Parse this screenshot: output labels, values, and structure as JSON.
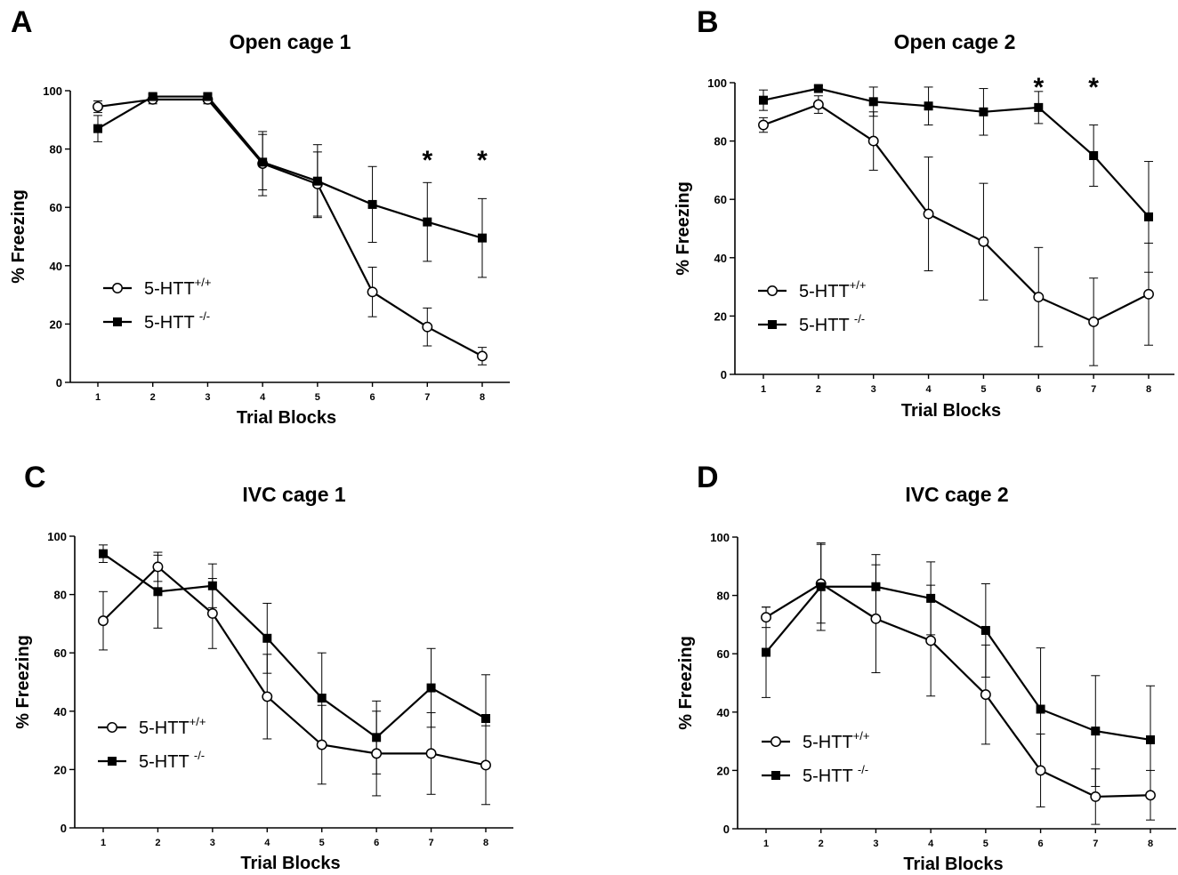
{
  "chart_data": [
    {
      "type": "line",
      "panel_label": "A",
      "title": "Open cage 1",
      "xlabel": "Trial Blocks",
      "ylabel": "% Freezing",
      "ylim": [
        0,
        100
      ],
      "yticks": [
        0,
        20,
        40,
        60,
        80,
        100
      ],
      "x": [
        1,
        2,
        3,
        4,
        5,
        6,
        7,
        8
      ],
      "series": [
        {
          "name": "5-HTT",
          "sup": "+/+",
          "marker": "open-circle",
          "values": [
            94.5,
            97,
            97,
            75,
            68,
            31,
            19,
            9
          ],
          "errors": [
            2,
            1.5,
            1.5,
            11,
            11,
            8.5,
            6.5,
            3
          ]
        },
        {
          "name": "5-HTT",
          "sup": "-/-",
          "marker": "filled-square",
          "values": [
            87,
            98,
            98,
            75.5,
            69,
            61,
            55,
            49.5
          ],
          "errors": [
            4.5,
            1,
            1,
            9.5,
            12.5,
            13,
            13.5,
            13.5
          ]
        }
      ],
      "annotations": [
        {
          "x": 7,
          "text": "*"
        },
        {
          "x": 8,
          "text": "*"
        }
      ],
      "legend_position": "bottom-left"
    },
    {
      "type": "line",
      "panel_label": "B",
      "title": "Open cage 2",
      "xlabel": "Trial Blocks",
      "ylabel": "% Freezing",
      "ylim": [
        0,
        100
      ],
      "yticks": [
        0,
        20,
        40,
        60,
        80,
        100
      ],
      "x": [
        1,
        2,
        3,
        4,
        5,
        6,
        7,
        8
      ],
      "series": [
        {
          "name": "5-HTT",
          "sup": "+/+",
          "marker": "open-circle",
          "values": [
            85.5,
            92.5,
            80,
            55,
            45.5,
            26.5,
            18,
            27.5
          ],
          "errors": [
            2.5,
            3,
            10,
            19.5,
            20,
            17,
            15,
            17.5
          ]
        },
        {
          "name": "5-HTT",
          "sup": "-/-",
          "marker": "filled-square",
          "values": [
            94,
            98,
            93.5,
            92,
            90,
            91.5,
            75,
            54
          ],
          "errors": [
            3.5,
            1,
            5,
            6.5,
            8,
            5.5,
            10.5,
            19
          ]
        }
      ],
      "annotations": [
        {
          "x": 6,
          "text": "*"
        },
        {
          "x": 7,
          "text": "*"
        }
      ],
      "legend_position": "bottom-left"
    },
    {
      "type": "line",
      "panel_label": "C",
      "title": "IVC cage 1",
      "xlabel": "Trial Blocks",
      "ylabel": "% Freezing",
      "ylim": [
        0,
        100
      ],
      "yticks": [
        0,
        20,
        40,
        60,
        80,
        100
      ],
      "x": [
        1,
        2,
        3,
        4,
        5,
        6,
        7,
        8
      ],
      "series": [
        {
          "name": "5-HTT",
          "sup": "+/+",
          "marker": "open-circle",
          "values": [
            71,
            89.5,
            73.5,
            45,
            28.5,
            25.5,
            25.5,
            21.5
          ],
          "errors": [
            10,
            5,
            12,
            14.5,
            13.5,
            14.5,
            14,
            13.5
          ]
        },
        {
          "name": "5-HTT",
          "sup": "-/-",
          "marker": "filled-square",
          "values": [
            94,
            81,
            83,
            65,
            44.5,
            31,
            48,
            37.5
          ],
          "errors": [
            3,
            12.5,
            7.5,
            12,
            15.5,
            12.5,
            13.5,
            15
          ]
        }
      ],
      "annotations": [],
      "legend_position": "bottom-left"
    },
    {
      "type": "line",
      "panel_label": "D",
      "title": "IVC cage 2",
      "xlabel": "Trial Blocks",
      "ylabel": "% Freezing",
      "ylim": [
        0,
        100
      ],
      "yticks": [
        0,
        20,
        40,
        60,
        80,
        100
      ],
      "x": [
        1,
        2,
        3,
        4,
        5,
        6,
        7,
        8
      ],
      "series": [
        {
          "name": "5-HTT",
          "sup": "+/+",
          "marker": "open-circle",
          "values": [
            72.5,
            84,
            72,
            64.5,
            46,
            20,
            11,
            11.5
          ],
          "errors": [
            3.5,
            13.5,
            18.5,
            19,
            17,
            12.5,
            9.5,
            8.5
          ]
        },
        {
          "name": "5-HTT",
          "sup": "-/-",
          "marker": "filled-square",
          "values": [
            60.5,
            83,
            83,
            79,
            68,
            41,
            33.5,
            30.5
          ],
          "errors": [
            15.5,
            15,
            11,
            12.5,
            16,
            21,
            19,
            18.5
          ]
        }
      ],
      "annotations": [],
      "legend_position": "bottom-left"
    }
  ]
}
